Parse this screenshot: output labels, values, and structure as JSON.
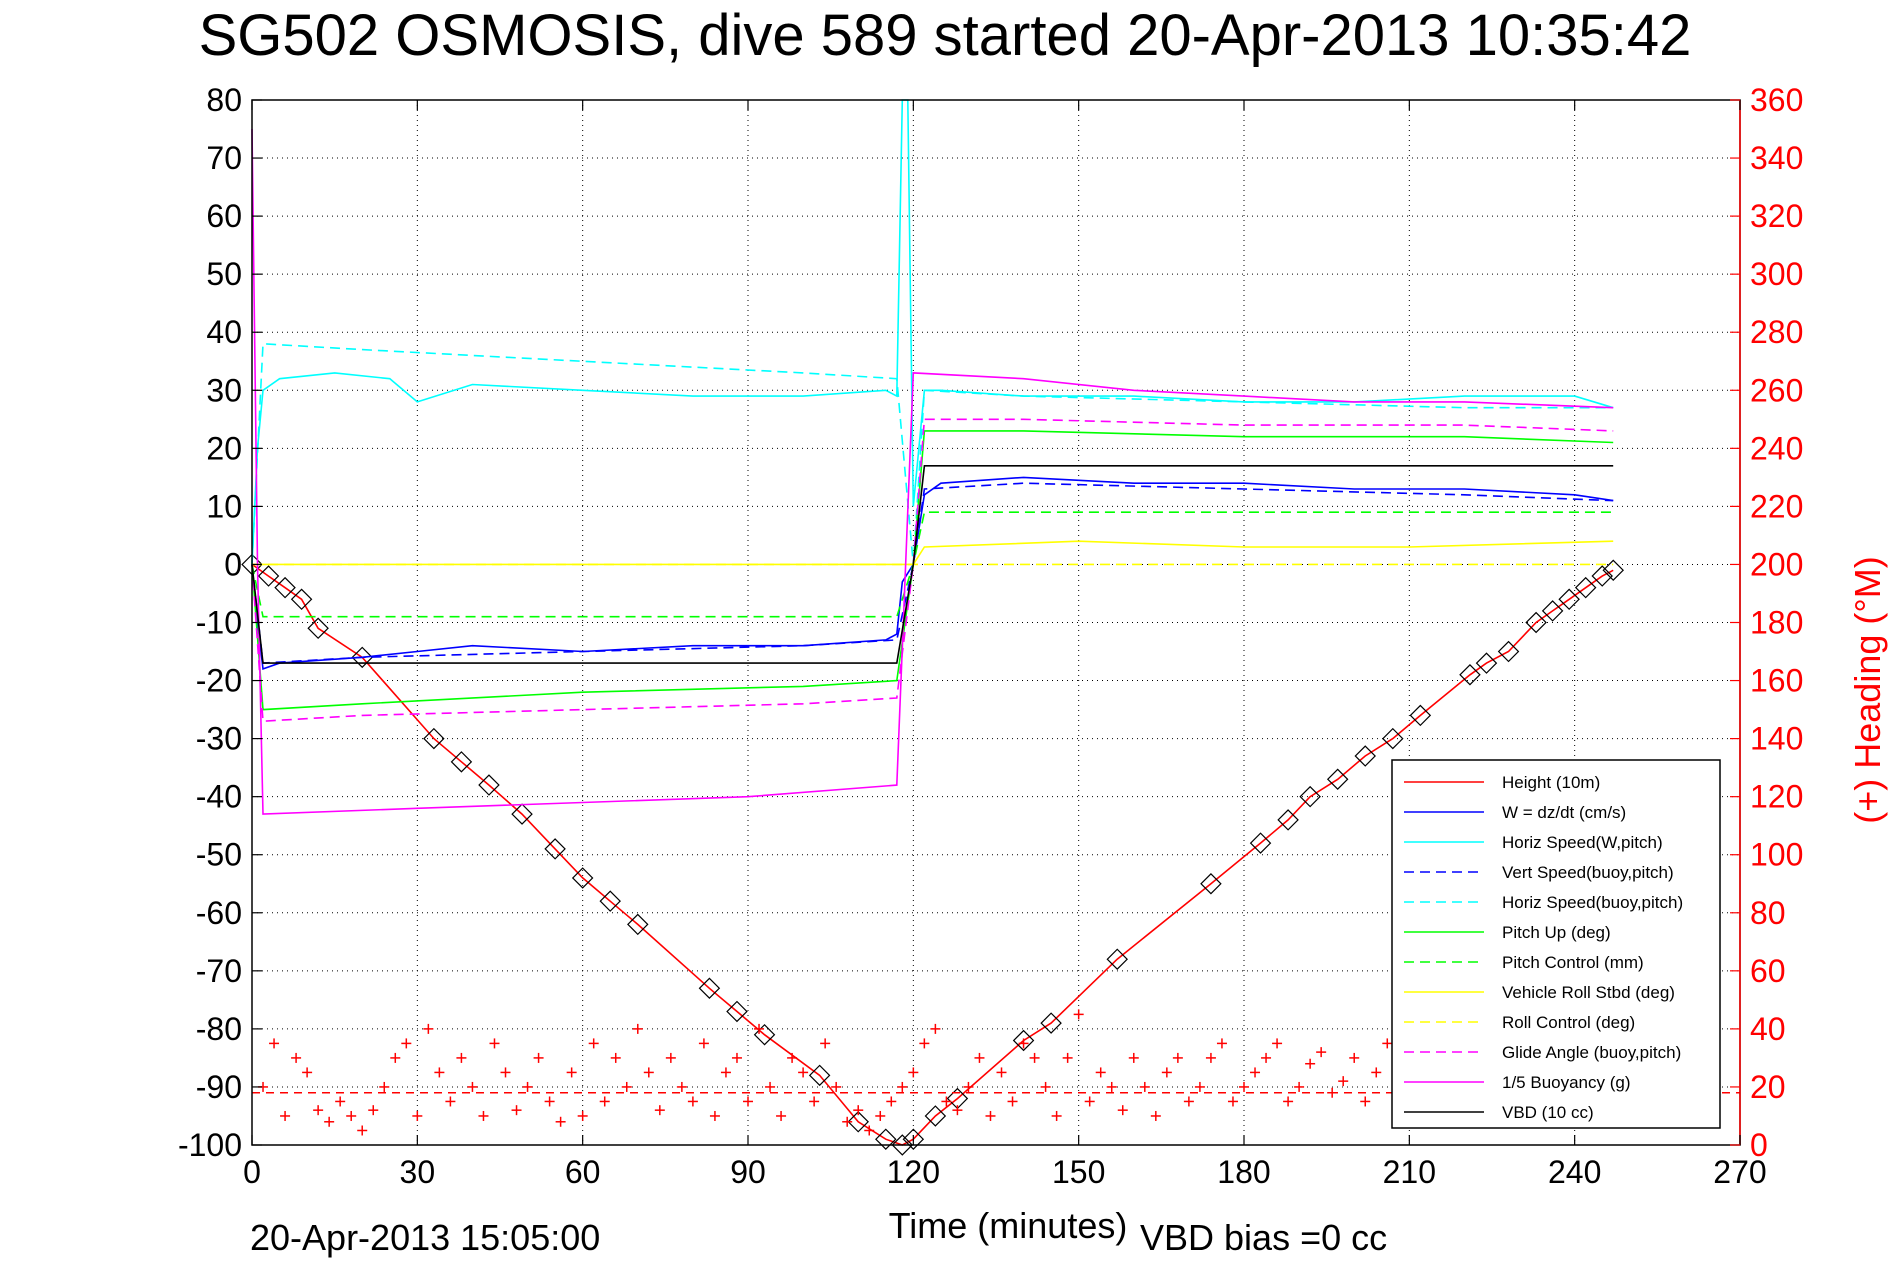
{
  "chart_data": {
    "type": "line",
    "title": "SG502 OSMOSIS, dive 589 started 20-Apr-2013 10:35:42",
    "xlabel": "Time (minutes)",
    "ylabel": "",
    "y2label": "(+) Heading (°M)",
    "footer_left": "20-Apr-2013 15:05:00",
    "footer_right": "VBD bias =0 cc",
    "xlim": [
      0,
      270
    ],
    "ylim": [
      -100,
      80
    ],
    "y2lim": [
      0,
      360
    ],
    "xticks": [
      0,
      30,
      60,
      90,
      120,
      150,
      180,
      210,
      240,
      270
    ],
    "yticks": [
      80,
      70,
      60,
      50,
      40,
      30,
      20,
      10,
      0,
      -10,
      -20,
      -30,
      -40,
      -50,
      -60,
      -70,
      -80,
      -90,
      -100
    ],
    "y2ticks": [
      360,
      340,
      320,
      300,
      280,
      260,
      240,
      220,
      200,
      180,
      160,
      140,
      120,
      100,
      80,
      60,
      40,
      20,
      0
    ],
    "grid": true,
    "legend_position": "bottom-right",
    "series": [
      {
        "name": "Height (10m)",
        "color": "#ff0000",
        "style": "solid",
        "markers": "triangle-square",
        "x": [
          0,
          3,
          6,
          9,
          12,
          20,
          33,
          38,
          43,
          49,
          55,
          60,
          65,
          70,
          83,
          88,
          93,
          103,
          110,
          115,
          118,
          120,
          124,
          128,
          140,
          145,
          157,
          174,
          183,
          188,
          192,
          197,
          202,
          207,
          212,
          221,
          224,
          228,
          233,
          236,
          239,
          242,
          245,
          247
        ],
        "y": [
          0,
          -2,
          -4,
          -6,
          -11,
          -16,
          -30,
          -34,
          -38,
          -43,
          -49,
          -54,
          -58,
          -62,
          -73,
          -77,
          -81,
          -88,
          -96,
          -99,
          -100,
          -99,
          -95,
          -92,
          -82,
          -79,
          -68,
          -55,
          -48,
          -44,
          -40,
          -37,
          -33,
          -30,
          -26,
          -19,
          -17,
          -15,
          -10,
          -8,
          -6,
          -4,
          -2,
          -1
        ]
      },
      {
        "name": "W = dz/dt (cm/s)",
        "color": "#0000ff",
        "style": "solid",
        "x": [
          0,
          1,
          2,
          5,
          20,
          30,
          40,
          60,
          80,
          100,
          115,
          117,
          118,
          120,
          122,
          125,
          140,
          160,
          180,
          200,
          220,
          240,
          247
        ],
        "y": [
          0,
          -10,
          -18,
          -17,
          -16,
          -15,
          -14,
          -15,
          -14,
          -14,
          -13,
          -12,
          -3,
          0,
          12,
          14,
          15,
          14,
          14,
          13,
          13,
          12,
          11
        ]
      },
      {
        "name": "Horiz Speed(W,pitch)",
        "color": "#00ffff",
        "style": "solid",
        "x": [
          0,
          1,
          2,
          5,
          15,
          25,
          30,
          40,
          60,
          80,
          100,
          115,
          117,
          118,
          119,
          120,
          122,
          125,
          140,
          160,
          180,
          200,
          220,
          240,
          247
        ],
        "y": [
          0,
          20,
          30,
          32,
          33,
          32,
          28,
          31,
          30,
          29,
          29,
          30,
          29,
          80,
          80,
          10,
          30,
          30,
          29,
          29,
          28,
          28,
          29,
          29,
          27
        ]
      },
      {
        "name": "Vert Speed(buoy,pitch)",
        "color": "#0000ff",
        "style": "dashed",
        "x": [
          0,
          2,
          20,
          60,
          100,
          117,
          120,
          122,
          140,
          180,
          220,
          247
        ],
        "y": [
          0,
          -17,
          -16,
          -15,
          -14,
          -13,
          0,
          13,
          14,
          13,
          12,
          11
        ]
      },
      {
        "name": "Horiz Speed(buoy,pitch)",
        "color": "#00ffff",
        "style": "dashed",
        "x": [
          0,
          2,
          20,
          60,
          100,
          117,
          120,
          122,
          140,
          180,
          220,
          247
        ],
        "y": [
          0,
          38,
          37,
          35,
          33,
          32,
          0,
          30,
          29,
          28,
          27,
          27
        ]
      },
      {
        "name": "Pitch Up (deg)",
        "color": "#00ff00",
        "style": "solid",
        "x": [
          0,
          2,
          20,
          60,
          100,
          117,
          120,
          122,
          140,
          180,
          220,
          247
        ],
        "y": [
          0,
          -25,
          -24,
          -22,
          -21,
          -20,
          0,
          23,
          23,
          22,
          22,
          21
        ]
      },
      {
        "name": "Pitch Control (mm)",
        "color": "#00ff00",
        "style": "dashed",
        "x": [
          0,
          2,
          30,
          60,
          90,
          117,
          120,
          122,
          150,
          180,
          210,
          247
        ],
        "y": [
          0,
          -9,
          -9,
          -9,
          -9,
          -9,
          0,
          9,
          9,
          9,
          9,
          9
        ]
      },
      {
        "name": "Vehicle Roll Stbd (deg)",
        "color": "#ffff00",
        "style": "solid",
        "x": [
          0,
          5,
          30,
          60,
          90,
          117,
          120,
          122,
          150,
          180,
          210,
          247
        ],
        "y": [
          0,
          0,
          0,
          0,
          0,
          0,
          0,
          3,
          4,
          3,
          3,
          4
        ]
      },
      {
        "name": "Roll Control (deg)",
        "color": "#ffff00",
        "style": "dashed",
        "x": [
          0,
          5,
          30,
          60,
          90,
          117,
          120,
          122,
          150,
          180,
          210,
          247
        ],
        "y": [
          0,
          0,
          0,
          0,
          0,
          0,
          0,
          0,
          0,
          0,
          0,
          0
        ]
      },
      {
        "name": "Glide Angle (buoy,pitch)",
        "color": "#ff00ff",
        "style": "dashed",
        "x": [
          0,
          2,
          20,
          60,
          100,
          117,
          120,
          122,
          140,
          180,
          220,
          247
        ],
        "y": [
          0,
          -27,
          -26,
          -25,
          -24,
          -23,
          0,
          25,
          25,
          24,
          24,
          23
        ]
      },
      {
        "name": "1/5 Buoyancy (g)",
        "color": "#ff00ff",
        "style": "solid",
        "x": [
          0,
          1,
          2,
          30,
          60,
          90,
          117,
          120,
          140,
          160,
          180,
          200,
          220,
          247
        ],
        "y": [
          75,
          0,
          -43,
          -42,
          -41,
          -40,
          -38,
          33,
          32,
          30,
          29,
          28,
          28,
          27
        ]
      },
      {
        "name": "VBD (10 cc)",
        "color": "#000000",
        "style": "solid",
        "x": [
          0,
          2,
          117,
          120,
          122,
          247
        ],
        "y": [
          0,
          -17,
          -17,
          0,
          17,
          17
        ]
      }
    ],
    "heading_series": {
      "name": "(+) Heading (°M)",
      "color": "#ff0000",
      "marker": "+",
      "reference_line": 18,
      "x": [
        2,
        4,
        6,
        8,
        10,
        12,
        14,
        16,
        18,
        20,
        22,
        24,
        26,
        28,
        30,
        32,
        34,
        36,
        38,
        40,
        42,
        44,
        46,
        48,
        50,
        52,
        54,
        56,
        58,
        60,
        62,
        64,
        66,
        68,
        70,
        72,
        74,
        76,
        78,
        80,
        82,
        84,
        86,
        88,
        90,
        92,
        94,
        96,
        98,
        100,
        102,
        104,
        106,
        108,
        110,
        112,
        114,
        116,
        118,
        120,
        122,
        124,
        126,
        128,
        130,
        132,
        134,
        136,
        138,
        140,
        142,
        144,
        146,
        148,
        150,
        152,
        154,
        156,
        158,
        160,
        162,
        164,
        166,
        168,
        170,
        172,
        174,
        176,
        178,
        180,
        182,
        184,
        186,
        188,
        190,
        192,
        194,
        196,
        198,
        200,
        202,
        204,
        206,
        208,
        210,
        212,
        214,
        216,
        218,
        220,
        222,
        224,
        226,
        228,
        230,
        232,
        234,
        236,
        238,
        240,
        242,
        244,
        246
      ],
      "y": [
        20,
        35,
        10,
        30,
        25,
        12,
        8,
        15,
        10,
        5,
        12,
        20,
        30,
        35,
        10,
        40,
        25,
        15,
        30,
        20,
        10,
        35,
        25,
        12,
        20,
        30,
        15,
        8,
        25,
        10,
        35,
        15,
        30,
        20,
        40,
        25,
        12,
        30,
        20,
        15,
        35,
        10,
        25,
        30,
        15,
        40,
        20,
        10,
        30,
        25,
        15,
        35,
        20,
        8,
        12,
        5,
        10,
        15,
        20,
        25,
        35,
        40,
        15,
        12,
        20,
        30,
        10,
        25,
        15,
        35,
        30,
        20,
        10,
        30,
        45,
        15,
        25,
        20,
        12,
        30,
        20,
        10,
        25,
        30,
        15,
        20,
        30,
        35,
        15,
        20,
        25,
        30,
        35,
        15,
        20,
        28,
        32,
        18,
        22,
        30,
        15,
        25,
        35,
        20,
        15,
        30,
        25,
        12,
        10,
        20,
        25,
        30,
        15,
        20,
        30,
        25,
        15,
        35,
        20,
        12,
        25,
        15,
        20
      ]
    }
  }
}
